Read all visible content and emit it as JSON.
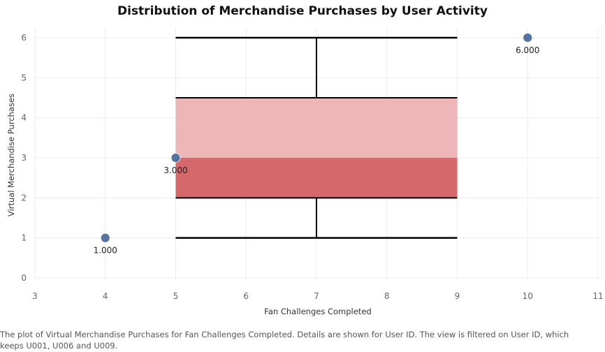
{
  "chart_data": {
    "type": "scatter",
    "title": "Distribution of Merchandise Purchases by User Activity",
    "xlabel": "Fan Challenges Completed",
    "ylabel": "Virtual Merchandise Purchases",
    "xlim": [
      3,
      11
    ],
    "ylim": [
      0,
      6.4
    ],
    "xticks": [
      3,
      4,
      5,
      6,
      7,
      8,
      9,
      10,
      11
    ],
    "yticks": [
      0,
      1,
      2,
      3,
      4,
      5,
      6
    ],
    "grid": true,
    "points": [
      {
        "x": 4,
        "y": 1,
        "label": "1.000"
      },
      {
        "x": 5,
        "y": 3,
        "label": "3.000"
      },
      {
        "x": 10,
        "y": 6,
        "label": "6.000"
      }
    ],
    "box": {
      "x_start": 5,
      "x_end": 9,
      "median_x": 7,
      "lower_whisker": 1,
      "q1": 2,
      "median": 3,
      "q3": 4.5,
      "upper_whisker": 6
    },
    "colors": {
      "point": "#4e6d9c",
      "box_lower": "#d4686b",
      "box_upper": "#efb6b7",
      "whisker": "#000000",
      "grid": "#ececec"
    }
  },
  "caption": "The plot of Virtual Merchandise Purchases for Fan Challenges Completed.  Details are shown for User ID. The view is filtered on User ID, which keeps U001, U006 and U009."
}
